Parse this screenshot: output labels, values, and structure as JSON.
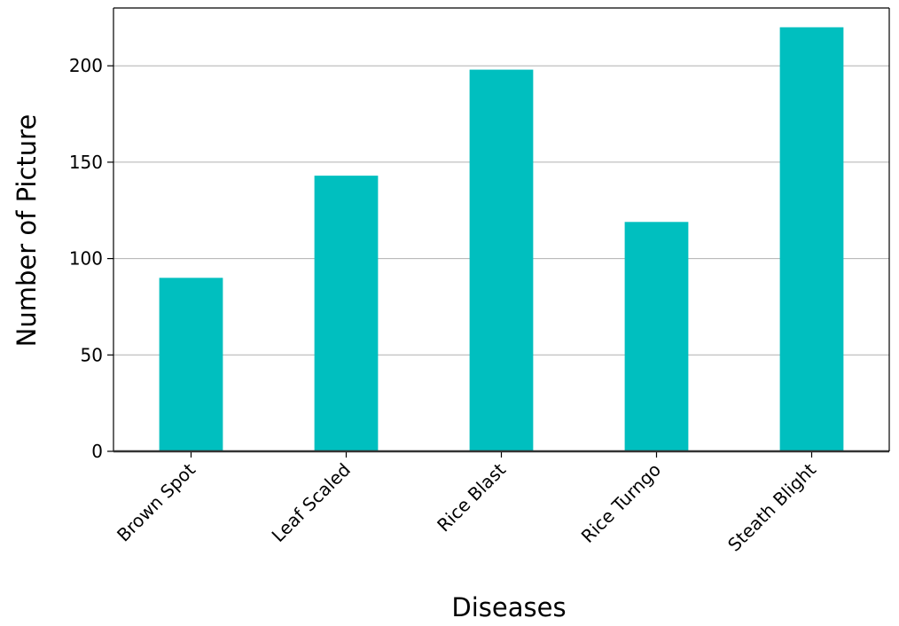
{
  "chart_data": {
    "type": "bar",
    "title": "",
    "xlabel": "Diseases",
    "ylabel": "Number of Picture",
    "categories": [
      "Brown Spot",
      "Leaf Scaled",
      "Rice Blast",
      "Rice Turngo",
      "Steath Blight"
    ],
    "values": [
      90,
      143,
      198,
      119,
      220
    ],
    "ylim": [
      0,
      230
    ],
    "yticks": [
      0,
      50,
      100,
      150,
      200
    ],
    "grid": "horizontal",
    "legend": "none",
    "bar_color": "#00bfbf",
    "grid_color": "#b0b0b0",
    "axis_color": "#000000"
  }
}
